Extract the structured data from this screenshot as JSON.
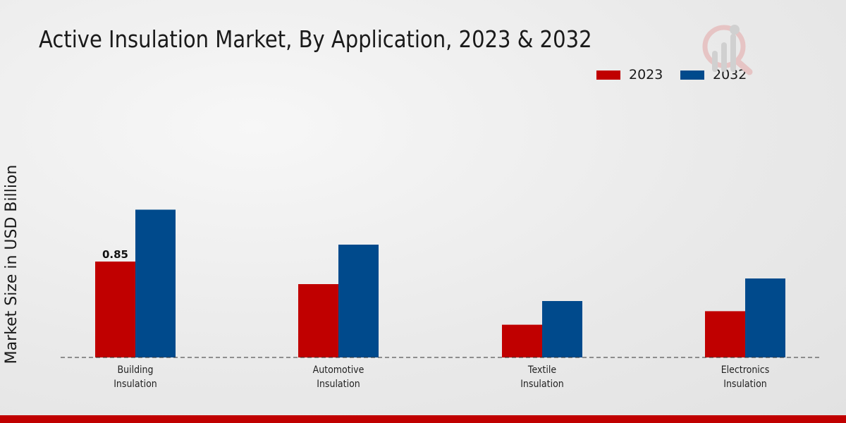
{
  "chart_data": {
    "type": "bar",
    "title": "Active Insulation Market, By Application, 2023 & 2032",
    "xlabel": "",
    "ylabel": "Market Size in USD Billion",
    "categories": [
      [
        "Building",
        "Insulation"
      ],
      [
        "Automotive",
        "Insulation"
      ],
      [
        "Textile",
        "Insulation"
      ],
      [
        "Electronics",
        "Insulation"
      ]
    ],
    "series": [
      {
        "name": "2023",
        "color": "#c00000",
        "values": [
          0.85,
          0.65,
          0.29,
          0.41
        ]
      },
      {
        "name": "2032",
        "color": "#004a8c",
        "values": [
          1.31,
          1.0,
          0.5,
          0.7
        ]
      }
    ],
    "data_labels": [
      {
        "series": 0,
        "index": 0,
        "text": "0.85"
      }
    ],
    "ylim": [
      0,
      1.6
    ],
    "grid": false,
    "legend": "top-right"
  }
}
